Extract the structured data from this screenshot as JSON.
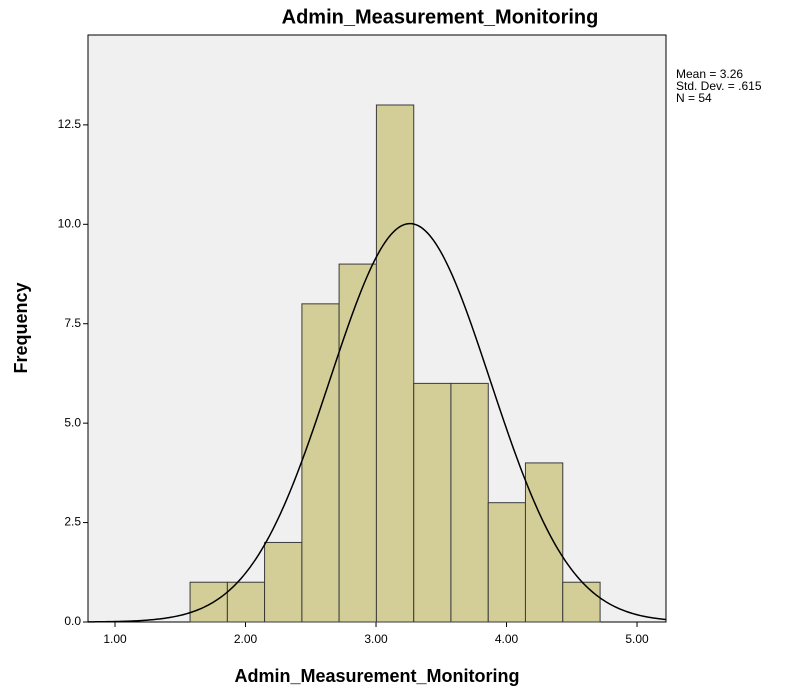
{
  "chart_data": {
    "type": "histogram",
    "title": "Admin_Measurement_Monitoring",
    "x_label": "Admin_Measurement_Monitoring",
    "y_label": "Frequency",
    "bins": [
      1.575,
      1.861,
      2.146,
      2.432,
      2.717,
      3.003,
      3.289,
      3.574,
      3.86,
      4.145,
      4.431,
      4.717
    ],
    "counts": [
      1,
      1,
      2,
      8,
      9,
      13,
      6,
      6,
      3,
      4,
      1
    ],
    "color": "#d3ce97",
    "edge_color": "#3a3a3a",
    "background": "#f0f0f0",
    "xlim": [
      0.793,
      5.222
    ],
    "ylim": [
      0,
      14.76
    ],
    "xticks": [
      {
        "value": 1,
        "label": "1.00"
      },
      {
        "value": 2,
        "label": "2.00"
      },
      {
        "value": 3,
        "label": "3.00"
      },
      {
        "value": 4,
        "label": "4.00"
      },
      {
        "value": 5,
        "label": "5.00"
      }
    ],
    "yticks": [
      {
        "value": 0,
        "label": "0.0"
      },
      {
        "value": 2.5,
        "label": "2.5"
      },
      {
        "value": 5,
        "label": "5.0"
      },
      {
        "value": 7.5,
        "label": "7.5"
      },
      {
        "value": 10,
        "label": "10.0"
      },
      {
        "value": 12.5,
        "label": "12.5"
      }
    ],
    "normal_curve": {
      "mean": 3.26,
      "std_dev": 0.615,
      "n": 54
    },
    "annotations": [
      "Mean = 3.26",
      "Std. Dev. = .615",
      "N = 54"
    ]
  }
}
